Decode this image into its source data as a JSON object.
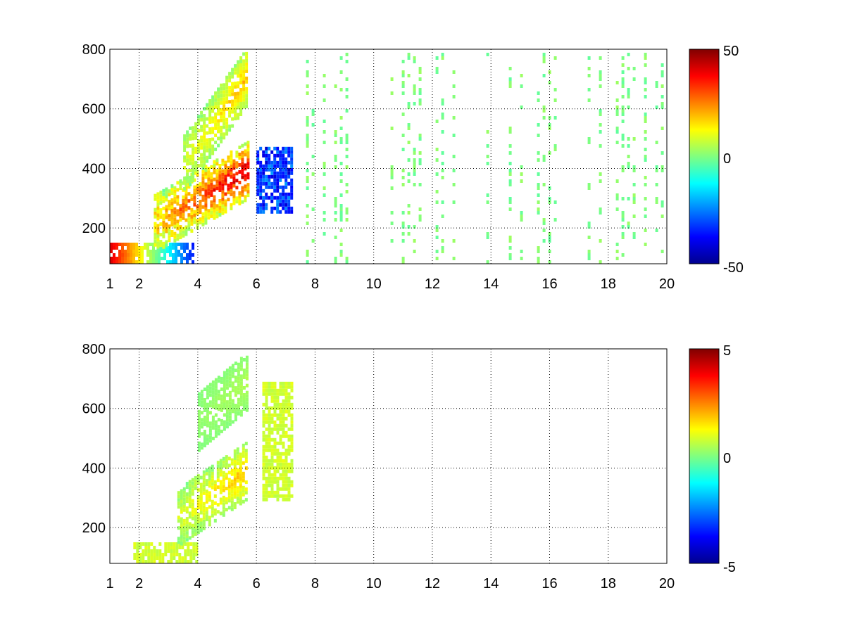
{
  "chart_data": [
    {
      "type": "heatmap",
      "title": "",
      "xlabel": "",
      "ylabel": "",
      "xlim": [
        1,
        20
      ],
      "ylim": [
        80,
        800
      ],
      "grid": true,
      "colormap": "jet",
      "x_ticks": [
        1,
        2,
        4,
        6,
        8,
        10,
        12,
        14,
        16,
        18,
        20
      ],
      "x_tick_labels": [
        "1",
        "2",
        "4",
        "6",
        "8",
        "10",
        "12",
        "14",
        "16",
        "18",
        "20"
      ],
      "y_ticks": [
        200,
        400,
        600,
        800
      ],
      "y_tick_labels": [
        "200",
        "400",
        "600",
        "800"
      ],
      "colorbar": {
        "min": -50,
        "max": 50,
        "labels": [
          "50",
          "0",
          "-50"
        ]
      },
      "features": [
        {
          "desc": "strong low band",
          "x": [
            1,
            3.8
          ],
          "y": [
            80,
            160
          ],
          "value_left": 40,
          "value_right": -35
        },
        {
          "desc": "main rising ridge",
          "x": [
            2.5,
            5.7
          ],
          "y_start": 220,
          "y_end": 400,
          "value": 45
        },
        {
          "desc": "blue ridge after gap",
          "x": [
            6.0,
            7.2
          ],
          "y": [
            260,
            480
          ],
          "value": -40
        },
        {
          "desc": "upper faint ridge",
          "x": [
            3.5,
            5.7
          ],
          "y_start": 420,
          "y_end": 720,
          "value": 20
        },
        {
          "desc": "sparse noise",
          "x": [
            7.5,
            20
          ],
          "y": [
            80,
            800
          ],
          "value": 3
        }
      ]
    },
    {
      "type": "heatmap",
      "title": "",
      "xlabel": "",
      "ylabel": "",
      "xlim": [
        1,
        20
      ],
      "ylim": [
        80,
        800
      ],
      "grid": true,
      "colormap": "jet",
      "x_ticks": [
        1,
        2,
        4,
        6,
        8,
        10,
        12,
        14,
        16,
        18,
        20
      ],
      "x_tick_labels": [
        "1",
        "2",
        "4",
        "6",
        "8",
        "10",
        "12",
        "14",
        "16",
        "18",
        "20"
      ],
      "y_ticks": [
        200,
        400,
        600,
        800
      ],
      "y_tick_labels": [
        "200",
        "400",
        "600",
        "800"
      ],
      "colorbar": {
        "min": -5,
        "max": 5,
        "labels": [
          "5",
          "0",
          "-5"
        ]
      },
      "features": [
        {
          "desc": "low band",
          "x": [
            1.8,
            4.0
          ],
          "y": [
            80,
            160
          ],
          "value": 1
        },
        {
          "desc": "main rising ridge",
          "x": [
            3.3,
            5.7
          ],
          "y_start": 240,
          "y_end": 400,
          "value": 2
        },
        {
          "desc": "ridge after gap",
          "x": [
            6.2,
            7.2
          ],
          "y": [
            300,
            700
          ],
          "value": 1
        },
        {
          "desc": "upper faint ridge",
          "x": [
            4.0,
            5.7
          ],
          "y_start": 560,
          "y_end": 700,
          "value": 0.5
        }
      ]
    }
  ]
}
